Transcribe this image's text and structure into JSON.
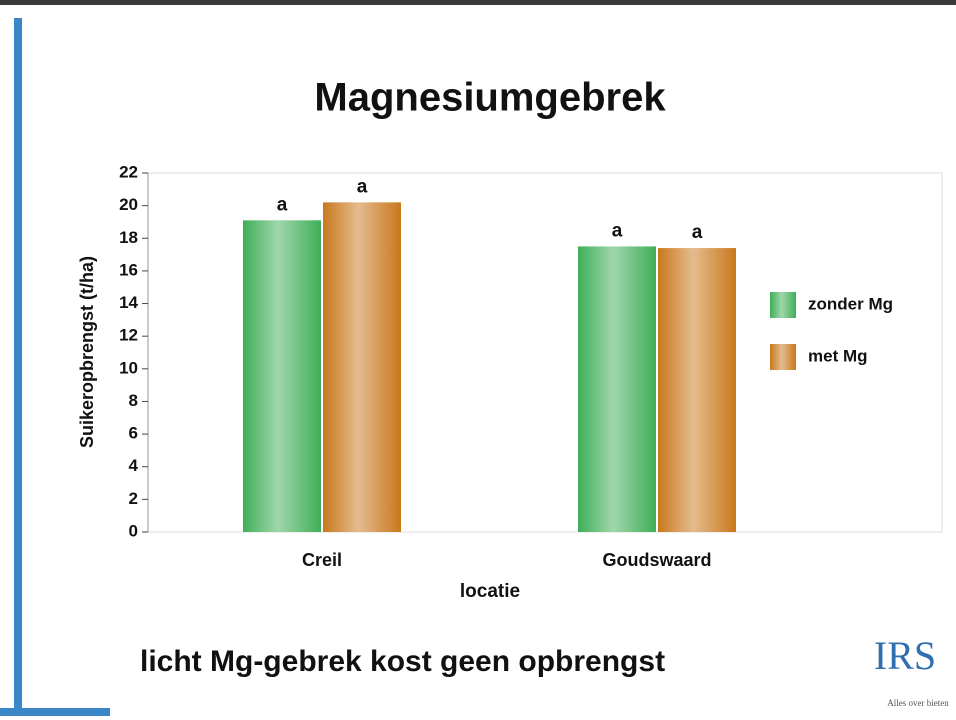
{
  "chart_data": {
    "type": "bar",
    "title": "Magnesiumgebrek",
    "y_label": "Suikeropbrengst (t/ha)",
    "x_label": "locatie",
    "categories": [
      "Creil",
      "Goudswaard"
    ],
    "series": [
      {
        "name": "zonder Mg",
        "color": "#3fae57",
        "values": [
          19.1,
          17.5
        ],
        "letters": [
          "a",
          "a"
        ]
      },
      {
        "name": "met Mg",
        "color": "#c9781c",
        "values": [
          20.2,
          17.4
        ],
        "letters": [
          "a",
          "a"
        ]
      }
    ],
    "ylim": [
      0,
      22
    ],
    "yticks": [
      0,
      2,
      4,
      6,
      8,
      10,
      12,
      14,
      16,
      18,
      20,
      22
    ],
    "legend": "right"
  },
  "slide": {
    "caption": "licht Mg-gebrek kost geen opbrengst",
    "logo": "IRS",
    "logo_tagline": "Alles over bieten"
  }
}
